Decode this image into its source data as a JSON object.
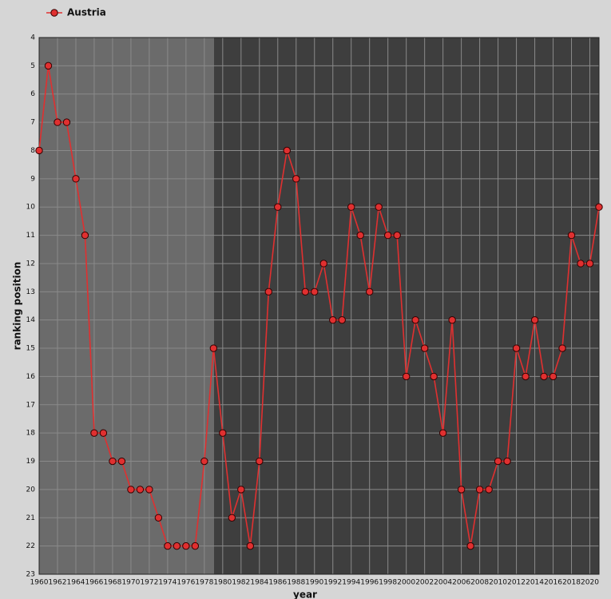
{
  "chart_data": {
    "type": "line",
    "x_label": "year",
    "y_label": "ranking position",
    "x": [
      1960,
      1961,
      1962,
      1963,
      1964,
      1965,
      1966,
      1967,
      1968,
      1969,
      1970,
      1971,
      1972,
      1973,
      1974,
      1975,
      1976,
      1977,
      1978,
      1979,
      1980,
      1981,
      1982,
      1983,
      1984,
      1985,
      1986,
      1987,
      1988,
      1989,
      1990,
      1991,
      1992,
      1993,
      1994,
      1995,
      1996,
      1997,
      1998,
      1999,
      2000,
      2001,
      2002,
      2003,
      2004,
      2005,
      2006,
      2007,
      2008,
      2009,
      2010,
      2011,
      2012,
      2013,
      2014,
      2015,
      2016,
      2017,
      2018,
      2019,
      2020,
      2021
    ],
    "series": [
      {
        "name": "Austria",
        "color": "#e03030",
        "values": [
          8,
          5,
          7,
          7,
          9,
          11,
          18,
          18,
          19,
          19,
          20,
          20,
          20,
          21,
          22,
          22,
          22,
          22,
          19,
          15,
          18,
          21,
          20,
          22,
          19,
          13,
          10,
          8,
          9,
          13,
          13,
          12,
          14,
          14,
          10,
          11,
          13,
          10,
          11,
          11,
          16,
          14,
          15,
          16,
          18,
          14,
          20,
          22,
          20,
          20,
          19,
          19,
          15,
          16,
          14,
          16,
          16,
          15,
          11,
          12,
          12,
          10
        ]
      }
    ],
    "xlim": [
      1960,
      2021
    ],
    "xticks": [
      1960,
      1962,
      1964,
      1966,
      1968,
      1970,
      1972,
      1974,
      1976,
      1978,
      1980,
      1982,
      1984,
      1986,
      1988,
      1990,
      1992,
      1994,
      1996,
      1998,
      2000,
      2002,
      2004,
      2006,
      2008,
      2010,
      2012,
      2014,
      2016,
      2018,
      2020
    ],
    "ylim": [
      4,
      23
    ],
    "y_inverted": true,
    "yticks": [
      4,
      5,
      6,
      7,
      8,
      9,
      10,
      11,
      12,
      13,
      14,
      15,
      16,
      17,
      18,
      19,
      20,
      21,
      22,
      23
    ],
    "grid": true,
    "legend": "top-left"
  }
}
